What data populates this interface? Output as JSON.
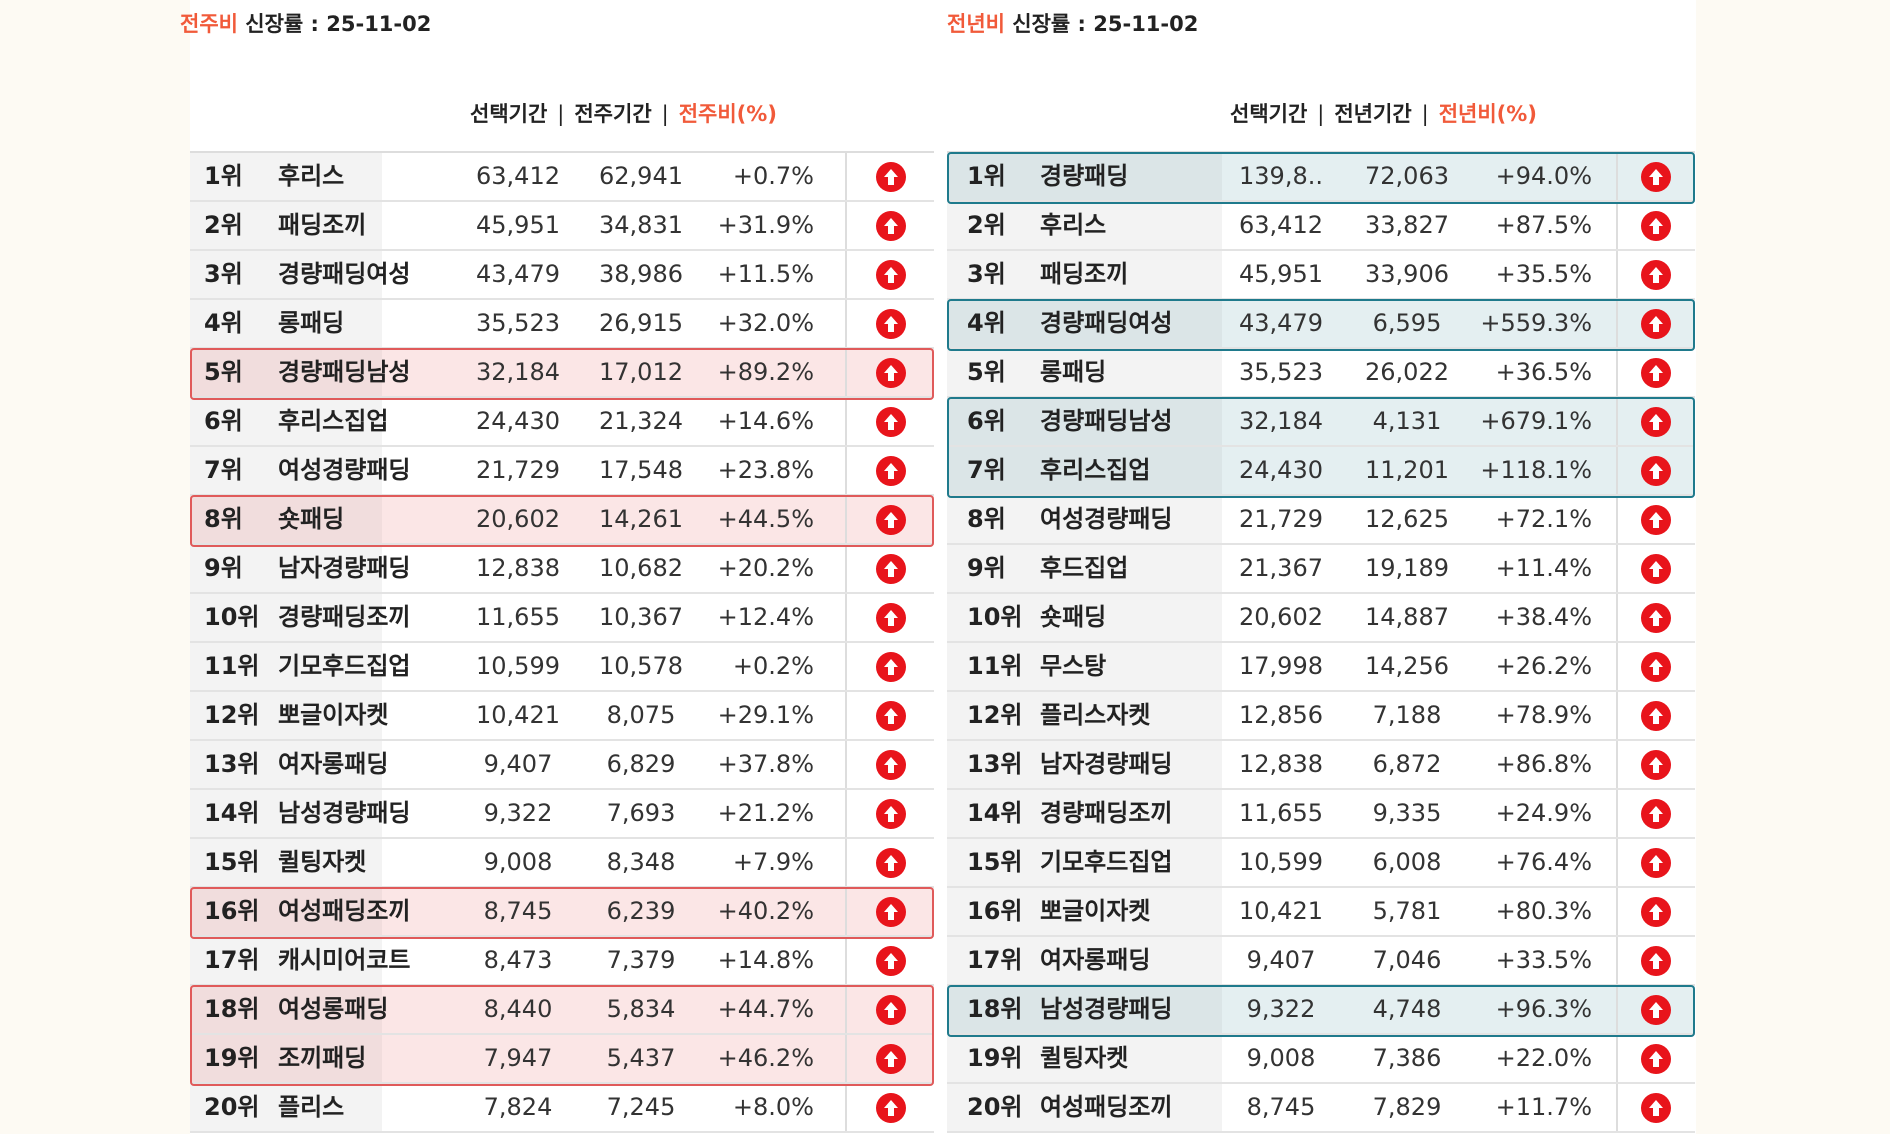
{
  "colors": {
    "accent": "#f15a3a",
    "arrow": "#e8141b",
    "week_highlight_border": "#e05a5a",
    "week_highlight_bg": "#fbe6e6",
    "year_highlight_border": "#1f7a8c",
    "year_highlight_bg": "#e4eff1"
  },
  "weekly": {
    "title_accent": "전주비",
    "title_rest": " 신장률  : 25-11-02",
    "headers": {
      "selected": "선택기간",
      "previous": "전주기간",
      "ratio": "전주비(%)",
      "sep": "|"
    },
    "rows": [
      {
        "rank": "1위",
        "name": "후리스",
        "selected": "63,412",
        "previous": "62,941",
        "ratio": "+0.7%",
        "trend": "up-arrow-icon",
        "highlight": false
      },
      {
        "rank": "2위",
        "name": "패딩조끼",
        "selected": "45,951",
        "previous": "34,831",
        "ratio": "+31.9%",
        "trend": "up-arrow-icon",
        "highlight": false
      },
      {
        "rank": "3위",
        "name": "경량패딩여성",
        "selected": "43,479",
        "previous": "38,986",
        "ratio": "+11.5%",
        "trend": "up-arrow-icon",
        "highlight": false
      },
      {
        "rank": "4위",
        "name": "롱패딩",
        "selected": "35,523",
        "previous": "26,915",
        "ratio": "+32.0%",
        "trend": "up-arrow-icon",
        "highlight": false
      },
      {
        "rank": "5위",
        "name": "경량패딩남성",
        "selected": "32,184",
        "previous": "17,012",
        "ratio": "+89.2%",
        "trend": "up-arrow-icon",
        "highlight": true
      },
      {
        "rank": "6위",
        "name": "후리스집업",
        "selected": "24,430",
        "previous": "21,324",
        "ratio": "+14.6%",
        "trend": "up-arrow-icon",
        "highlight": false
      },
      {
        "rank": "7위",
        "name": "여성경량패딩",
        "selected": "21,729",
        "previous": "17,548",
        "ratio": "+23.8%",
        "trend": "up-arrow-icon",
        "highlight": false
      },
      {
        "rank": "8위",
        "name": "숏패딩",
        "selected": "20,602",
        "previous": "14,261",
        "ratio": "+44.5%",
        "trend": "up-arrow-icon",
        "highlight": true
      },
      {
        "rank": "9위",
        "name": "남자경량패딩",
        "selected": "12,838",
        "previous": "10,682",
        "ratio": "+20.2%",
        "trend": "up-arrow-icon",
        "highlight": false
      },
      {
        "rank": "10위",
        "name": "경량패딩조끼",
        "selected": "11,655",
        "previous": "10,367",
        "ratio": "+12.4%",
        "trend": "up-arrow-icon",
        "highlight": false
      },
      {
        "rank": "11위",
        "name": "기모후드집업",
        "selected": "10,599",
        "previous": "10,578",
        "ratio": "+0.2%",
        "trend": "up-arrow-icon",
        "highlight": false
      },
      {
        "rank": "12위",
        "name": "뽀글이자켓",
        "selected": "10,421",
        "previous": "8,075",
        "ratio": "+29.1%",
        "trend": "up-arrow-icon",
        "highlight": false
      },
      {
        "rank": "13위",
        "name": "여자롱패딩",
        "selected": "9,407",
        "previous": "6,829",
        "ratio": "+37.8%",
        "trend": "up-arrow-icon",
        "highlight": false
      },
      {
        "rank": "14위",
        "name": "남성경량패딩",
        "selected": "9,322",
        "previous": "7,693",
        "ratio": "+21.2%",
        "trend": "up-arrow-icon",
        "highlight": false
      },
      {
        "rank": "15위",
        "name": "퀼팅자켓",
        "selected": "9,008",
        "previous": "8,348",
        "ratio": "+7.9%",
        "trend": "up-arrow-icon",
        "highlight": false
      },
      {
        "rank": "16위",
        "name": "여성패딩조끼",
        "selected": "8,745",
        "previous": "6,239",
        "ratio": "+40.2%",
        "trend": "up-arrow-icon",
        "highlight": true
      },
      {
        "rank": "17위",
        "name": "캐시미어코트",
        "selected": "8,473",
        "previous": "7,379",
        "ratio": "+14.8%",
        "trend": "up-arrow-icon",
        "highlight": false
      },
      {
        "rank": "18위",
        "name": "여성롱패딩",
        "selected": "8,440",
        "previous": "5,834",
        "ratio": "+44.7%",
        "trend": "up-arrow-icon",
        "highlight": true
      },
      {
        "rank": "19위",
        "name": "조끼패딩",
        "selected": "7,947",
        "previous": "5,437",
        "ratio": "+46.2%",
        "trend": "up-arrow-icon",
        "highlight": true
      },
      {
        "rank": "20위",
        "name": "플리스",
        "selected": "7,824",
        "previous": "7,245",
        "ratio": "+8.0%",
        "trend": "up-arrow-icon",
        "highlight": false
      }
    ]
  },
  "yearly": {
    "title_accent": "전년비",
    "title_rest": " 신장률 : 25-11-02",
    "headers": {
      "selected": "선택기간",
      "previous": "전년기간",
      "ratio": "전년비(%)",
      "sep": "|"
    },
    "rows": [
      {
        "rank": "1위",
        "name": "경량패딩",
        "selected": "139,8..",
        "previous": "72,063",
        "ratio": "+94.0%",
        "trend": "up-arrow-icon",
        "highlight": true
      },
      {
        "rank": "2위",
        "name": "후리스",
        "selected": "63,412",
        "previous": "33,827",
        "ratio": "+87.5%",
        "trend": "up-arrow-icon",
        "highlight": false
      },
      {
        "rank": "3위",
        "name": "패딩조끼",
        "selected": "45,951",
        "previous": "33,906",
        "ratio": "+35.5%",
        "trend": "up-arrow-icon",
        "highlight": false
      },
      {
        "rank": "4위",
        "name": "경량패딩여성",
        "selected": "43,479",
        "previous": "6,595",
        "ratio": "+559.3%",
        "trend": "up-arrow-icon",
        "highlight": true
      },
      {
        "rank": "5위",
        "name": "롱패딩",
        "selected": "35,523",
        "previous": "26,022",
        "ratio": "+36.5%",
        "trend": "up-arrow-icon",
        "highlight": false
      },
      {
        "rank": "6위",
        "name": "경량패딩남성",
        "selected": "32,184",
        "previous": "4,131",
        "ratio": "+679.1%",
        "trend": "up-arrow-icon",
        "highlight": true
      },
      {
        "rank": "7위",
        "name": "후리스집업",
        "selected": "24,430",
        "previous": "11,201",
        "ratio": "+118.1%",
        "trend": "up-arrow-icon",
        "highlight": true
      },
      {
        "rank": "8위",
        "name": "여성경량패딩",
        "selected": "21,729",
        "previous": "12,625",
        "ratio": "+72.1%",
        "trend": "up-arrow-icon",
        "highlight": false
      },
      {
        "rank": "9위",
        "name": "후드집업",
        "selected": "21,367",
        "previous": "19,189",
        "ratio": "+11.4%",
        "trend": "up-arrow-icon",
        "highlight": false
      },
      {
        "rank": "10위",
        "name": "숏패딩",
        "selected": "20,602",
        "previous": "14,887",
        "ratio": "+38.4%",
        "trend": "up-arrow-icon",
        "highlight": false
      },
      {
        "rank": "11위",
        "name": "무스탕",
        "selected": "17,998",
        "previous": "14,256",
        "ratio": "+26.2%",
        "trend": "up-arrow-icon",
        "highlight": false
      },
      {
        "rank": "12위",
        "name": "플리스자켓",
        "selected": "12,856",
        "previous": "7,188",
        "ratio": "+78.9%",
        "trend": "up-arrow-icon",
        "highlight": false
      },
      {
        "rank": "13위",
        "name": "남자경량패딩",
        "selected": "12,838",
        "previous": "6,872",
        "ratio": "+86.8%",
        "trend": "up-arrow-icon",
        "highlight": false
      },
      {
        "rank": "14위",
        "name": "경량패딩조끼",
        "selected": "11,655",
        "previous": "9,335",
        "ratio": "+24.9%",
        "trend": "up-arrow-icon",
        "highlight": false
      },
      {
        "rank": "15위",
        "name": "기모후드집업",
        "selected": "10,599",
        "previous": "6,008",
        "ratio": "+76.4%",
        "trend": "up-arrow-icon",
        "highlight": false
      },
      {
        "rank": "16위",
        "name": "뽀글이자켓",
        "selected": "10,421",
        "previous": "5,781",
        "ratio": "+80.3%",
        "trend": "up-arrow-icon",
        "highlight": false
      },
      {
        "rank": "17위",
        "name": "여자롱패딩",
        "selected": "9,407",
        "previous": "7,046",
        "ratio": "+33.5%",
        "trend": "up-arrow-icon",
        "highlight": false
      },
      {
        "rank": "18위",
        "name": "남성경량패딩",
        "selected": "9,322",
        "previous": "4,748",
        "ratio": "+96.3%",
        "trend": "up-arrow-icon",
        "highlight": true
      },
      {
        "rank": "19위",
        "name": "퀼팅자켓",
        "selected": "9,008",
        "previous": "7,386",
        "ratio": "+22.0%",
        "trend": "up-arrow-icon",
        "highlight": false
      },
      {
        "rank": "20위",
        "name": "여성패딩조끼",
        "selected": "8,745",
        "previous": "7,829",
        "ratio": "+11.7%",
        "trend": "up-arrow-icon",
        "highlight": false
      }
    ]
  }
}
